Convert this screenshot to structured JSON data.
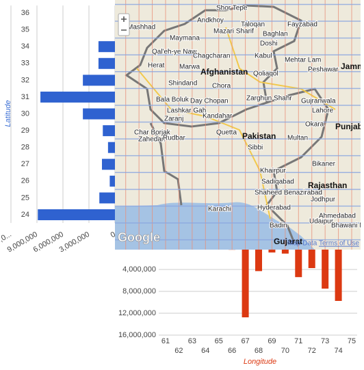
{
  "chart_data": [
    {
      "type": "bar",
      "horizontal": true,
      "axis_title": "Latitude",
      "categories": [
        "24",
        "25",
        "26",
        "27",
        "28",
        "29",
        "30",
        "31",
        "32",
        "33",
        "34",
        "35",
        "36"
      ],
      "values": [
        8900000,
        1800000,
        600000,
        1500000,
        800000,
        1400000,
        3700000,
        8600000,
        3700000,
        1900000,
        1900000,
        0,
        0
      ],
      "color": "#2f62d0",
      "title_color": "#3b6fd4",
      "xlim": [
        0,
        12000000
      ],
      "xticks": [
        {
          "value": 12000000,
          "label": "12,000,0..."
        },
        {
          "value": 9000000,
          "label": "9,000,000"
        },
        {
          "value": 6000000,
          "label": "6,000,000"
        },
        {
          "value": 3000000,
          "label": "3,000,000"
        },
        0
      ],
      "grid": true
    },
    {
      "type": "bar",
      "horizontal": false,
      "inverted": true,
      "axis_title": "Longitude",
      "categories": [
        "61",
        "62",
        "63",
        "64",
        "65",
        "66",
        "67",
        "68",
        "69",
        "70",
        "71",
        "72",
        "73",
        "74",
        "75"
      ],
      "values": [
        0,
        0,
        0,
        0,
        0,
        400000,
        12750000,
        4300000,
        900000,
        1100000,
        5400000,
        3750000,
        7500000,
        9750000,
        0
      ],
      "color": "#dc3912",
      "title_color": "#dc3912",
      "ylim": [
        0,
        16000000
      ],
      "yticks": [
        0,
        {
          "value": 4000000,
          "label": "4,000,000"
        },
        {
          "value": 8000000,
          "label": "8,000,000"
        },
        {
          "value": 12000000,
          "label": "12,000,000"
        },
        {
          "value": 16000000,
          "label": "16,000,000"
        }
      ],
      "grid": true
    }
  ],
  "map": {
    "labels": [
      "Shor Tepe",
      "Andkhoy",
      "Mazari Sharif",
      "Taloqan",
      "Fayzabad",
      "Baghlan",
      "Doshi",
      "Maymana",
      "Qal'eh-ye Naw",
      "Chagcharan",
      "Kabul",
      "Mehtar Lam",
      "Herat",
      "Marwa",
      "Afghanistan",
      "Qoliaqol",
      "Peshawar",
      "Shindand",
      "Chora",
      "Bala Boluk",
      "Day Chopan",
      "Zarghun Shahr",
      "Lashkar Gah",
      "Zaranj",
      "Kandahar",
      "Lahore",
      "Gujranwala",
      "Char Borjak",
      "Quetta",
      "Okara",
      "Zahedan",
      "Rudbar",
      "Pakistan",
      "Multan",
      "Sibbi",
      "Punjab",
      "Bikaner",
      "Khairpur",
      "Sadiqabad",
      "Shaheed Benazirabad",
      "Rajasthan",
      "Jodhpur",
      "Karachi",
      "Hyderabad",
      "Badin",
      "Udaipur",
      "Ahmedabad",
      "Bhawani Mandi",
      "Gujarat",
      "Jammu",
      "Mashhad",
      "Google",
      "Map Data",
      "Terms of Use"
    ]
  }
}
